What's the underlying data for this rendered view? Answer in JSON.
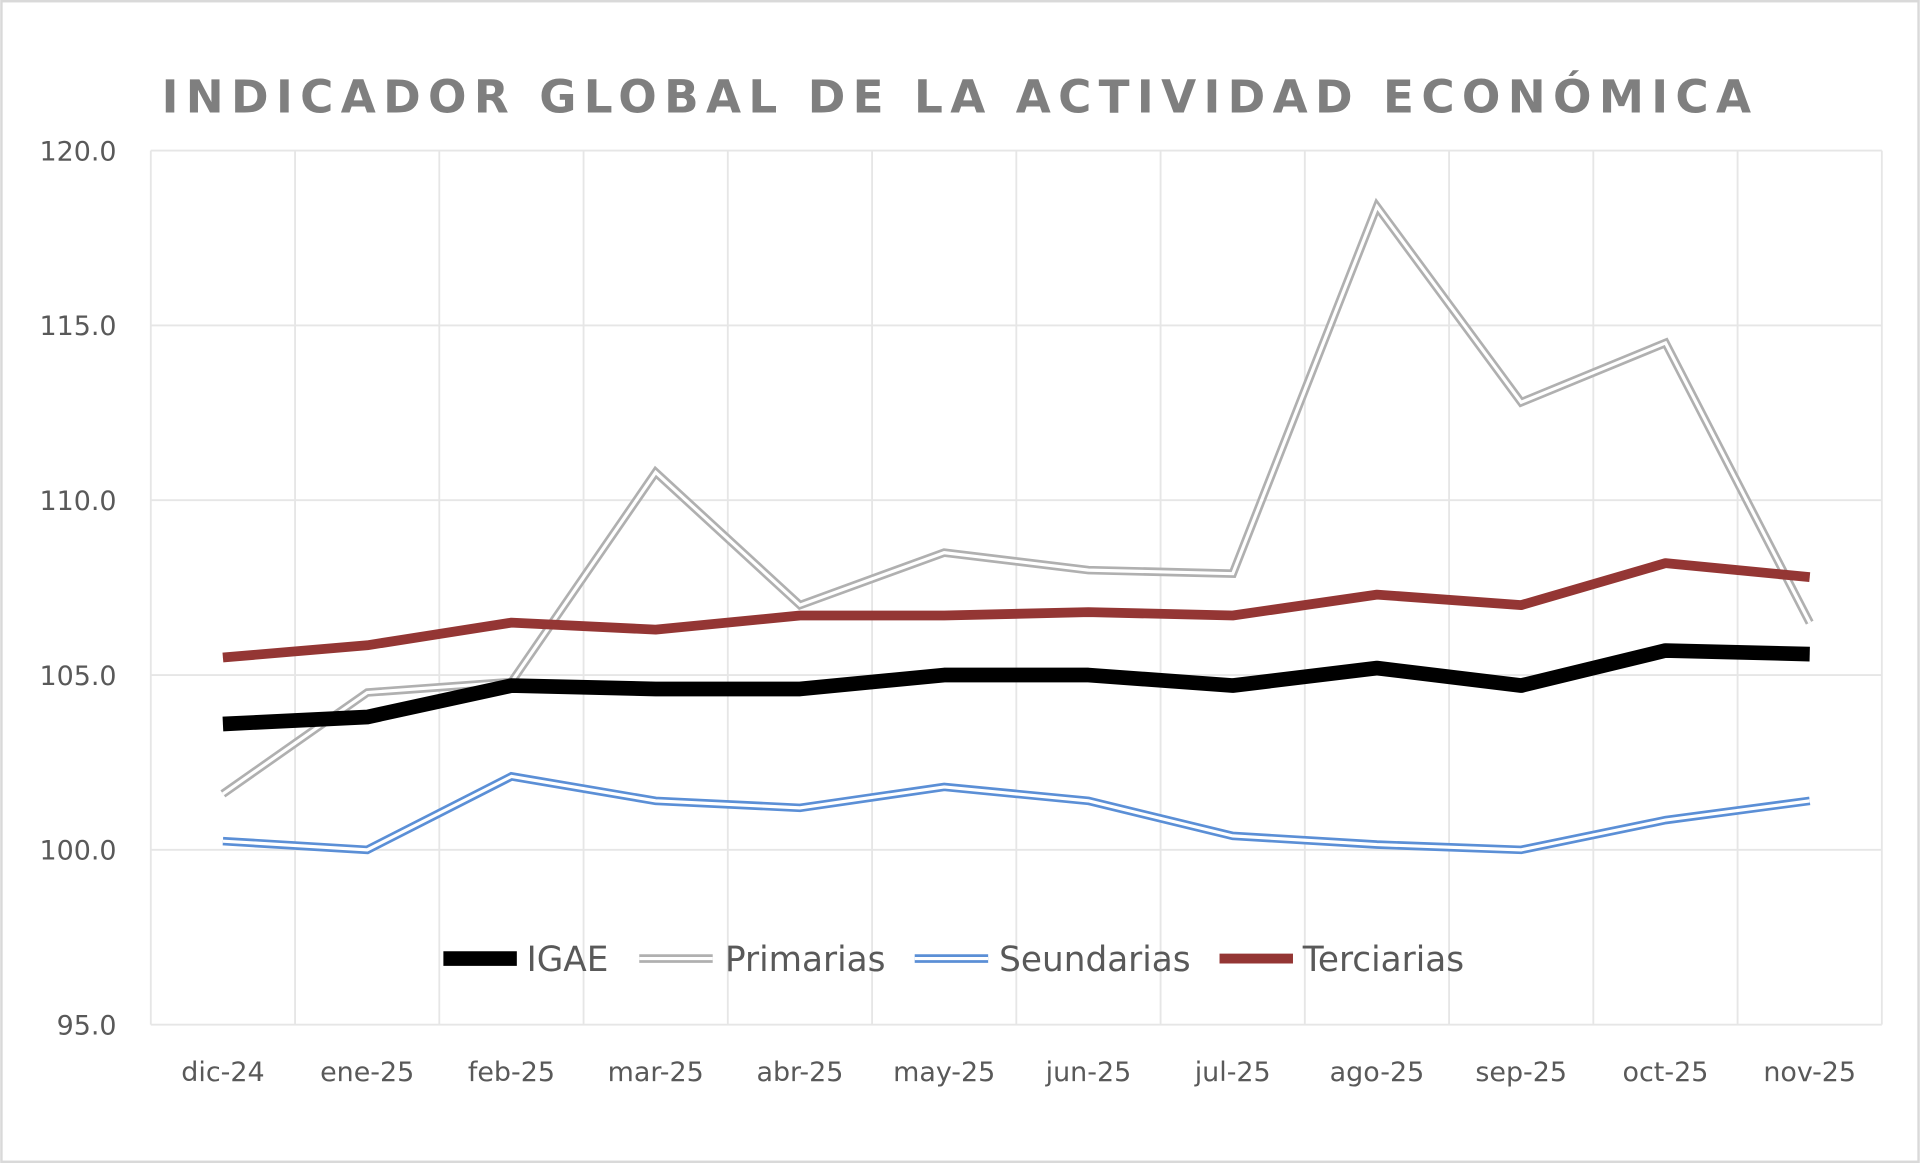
{
  "chart_data": {
    "type": "line",
    "title": "INDICADOR GLOBAL DE LA ACTIVIDAD ECONÓMICA",
    "xlabel": "",
    "ylabel": "",
    "categories": [
      "dic-24",
      "ene-25",
      "feb-25",
      "mar-25",
      "abr-25",
      "may-25",
      "jun-25",
      "jul-25",
      "ago-25",
      "sep-25",
      "oct-25",
      "nov-25"
    ],
    "ylim": [
      95,
      120
    ],
    "yticks": [
      "95.0",
      "100.0",
      "105.0",
      "110.0",
      "115.0",
      "120.0"
    ],
    "grid": true,
    "legend_position": "bottom-inside",
    "series": [
      {
        "name": "IGAE",
        "color": "#000000",
        "style": "thick",
        "values": [
          103.6,
          103.8,
          104.7,
          104.6,
          104.6,
          105.0,
          105.0,
          104.7,
          105.2,
          104.7,
          105.7,
          105.6
        ]
      },
      {
        "name": "Primarias",
        "color": "#b0b0b0",
        "style": "double",
        "values": [
          101.6,
          104.5,
          104.8,
          110.8,
          107.0,
          108.5,
          108.0,
          107.9,
          118.4,
          112.8,
          114.5,
          106.5
        ]
      },
      {
        "name": "Seundarias",
        "color": "#5b8fd6",
        "style": "double",
        "values": [
          100.25,
          100.0,
          102.1,
          101.4,
          101.2,
          101.8,
          101.4,
          100.4,
          100.15,
          100.0,
          100.85,
          101.4
        ]
      },
      {
        "name": "Terciarias",
        "color": "#943634",
        "style": "thick",
        "values": [
          105.5,
          105.85,
          106.5,
          106.3,
          106.7,
          106.7,
          106.8,
          106.7,
          107.3,
          107.0,
          108.2,
          107.8
        ]
      }
    ]
  }
}
